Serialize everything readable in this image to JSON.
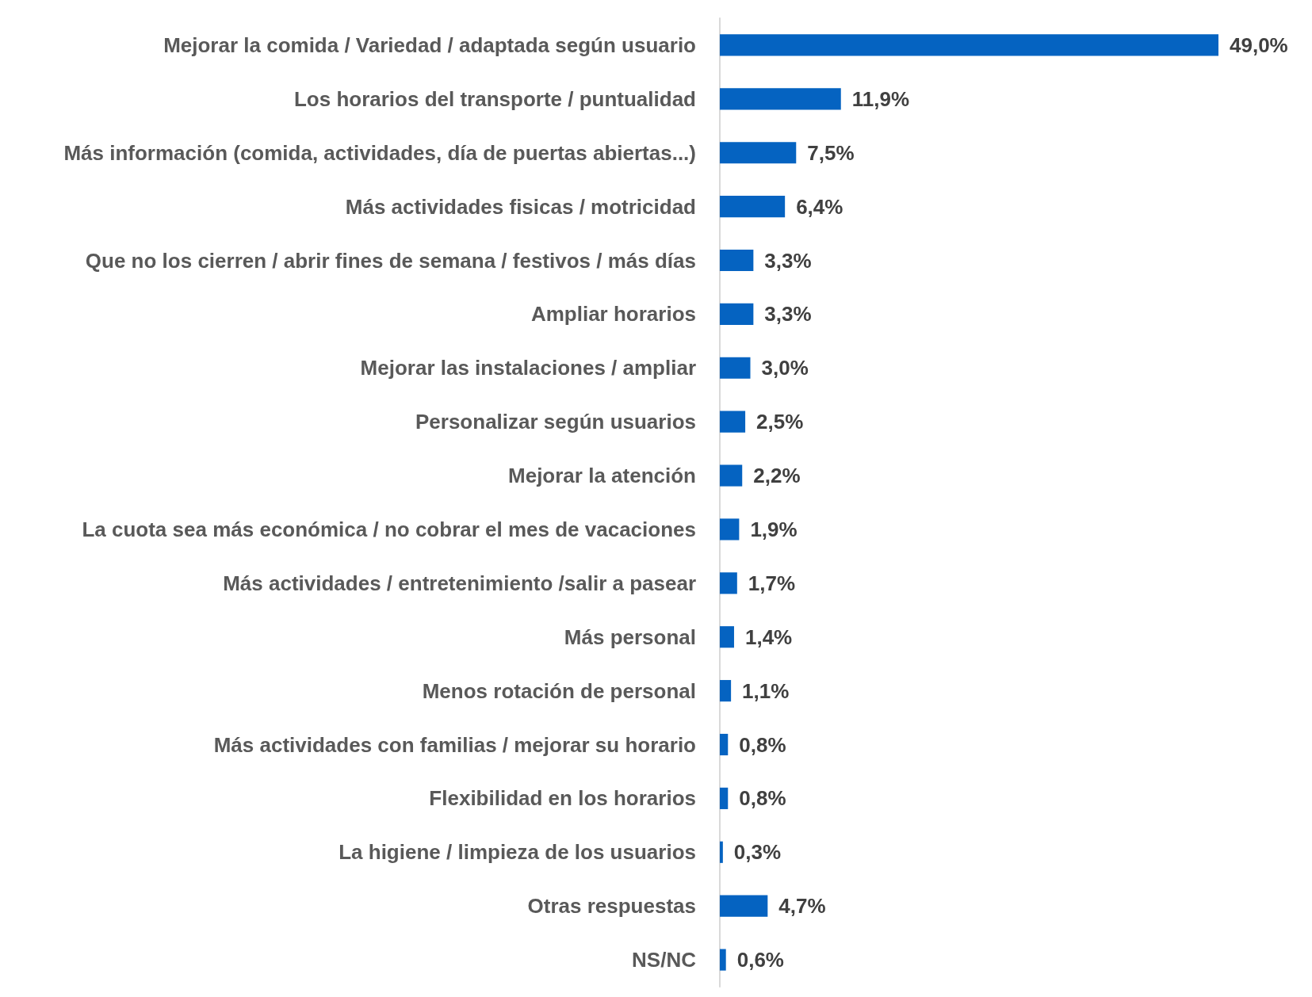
{
  "chart_data": {
    "type": "bar",
    "orientation": "horizontal",
    "categories": [
      "Mejorar la comida / Variedad / adaptada según usuario",
      "Los horarios del transporte / puntualidad",
      "Más información (comida, actividades, día de puertas abiertas...)",
      "Más actividades fisicas / motricidad",
      "Que no los cierren / abrir fines de semana / festivos / más días",
      "Ampliar horarios",
      "Mejorar las instalaciones / ampliar",
      "Personalizar según usuarios",
      "Mejorar la atención",
      "La cuota sea más económica / no cobrar el mes de vacaciones",
      "Más actividades / entretenimiento /salir a pasear",
      "Más personal",
      "Menos rotación de personal",
      "Más actividades con familias / mejorar su horario",
      "Flexibilidad en los horarios",
      "La higiene / limpieza de los usuarios",
      "Otras respuestas",
      "NS/NC"
    ],
    "values": [
      49.0,
      11.9,
      7.5,
      6.4,
      3.3,
      3.3,
      3.0,
      2.5,
      2.2,
      1.9,
      1.7,
      1.4,
      1.1,
      0.8,
      0.8,
      0.3,
      4.7,
      0.6
    ],
    "value_labels": [
      "49,0%",
      "11,9%",
      "7,5%",
      "6,4%",
      "3,3%",
      "3,3%",
      "3,0%",
      "2,5%",
      "2,2%",
      "1,9%",
      "1,7%",
      "1,4%",
      "1,1%",
      "0,8%",
      "0,8%",
      "0,3%",
      "4,7%",
      "0,6%"
    ],
    "color": "#0563c1"
  }
}
